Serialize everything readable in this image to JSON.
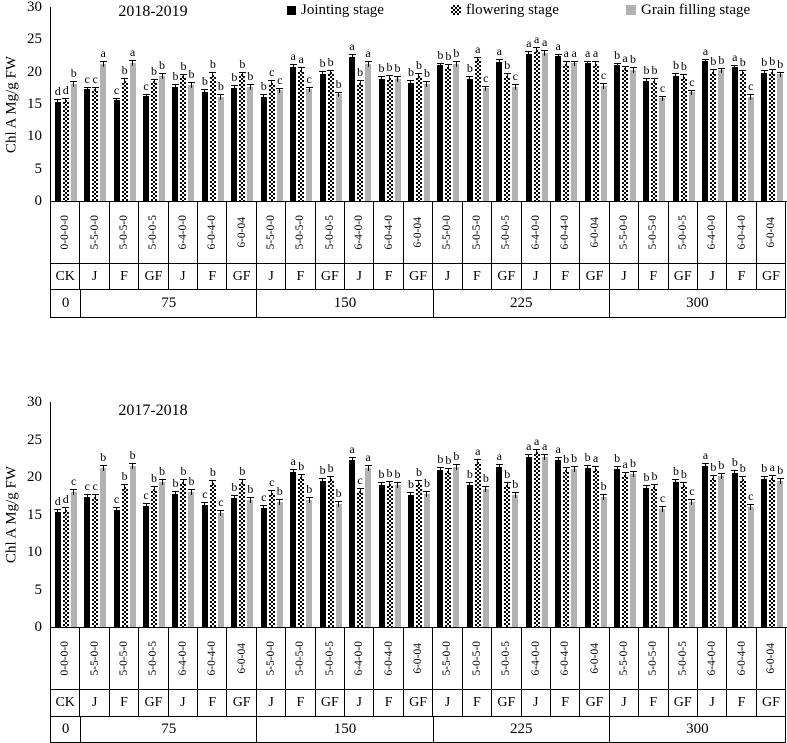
{
  "legend": {
    "items": [
      {
        "label": "Jointing stage",
        "swatch": "black"
      },
      {
        "label": "flowering stage",
        "swatch": "checker"
      },
      {
        "label": "Grain filling stage",
        "swatch": "gray"
      }
    ]
  },
  "colors": {
    "jointing": "#000000",
    "flowering_pattern": "black-white-checker",
    "grain_filling": "#b2b2b2",
    "axis": "#000000"
  },
  "chart_data": {
    "type": "bar",
    "ylabel": "Chl A Mg/g FW",
    "ylim": [
      0,
      30
    ],
    "yticks": [
      0,
      5,
      10,
      15,
      20,
      25,
      30
    ],
    "grid": false,
    "legend_position": "top",
    "error_bar_half": 0.4,
    "series_names": [
      "Jointing stage",
      "flowering stage",
      "Grain filling stage"
    ],
    "group_codes": [
      "0-0-0-0",
      "5-5-0-0",
      "5-0-5-0",
      "5-0-0-5",
      "6-4-0-0",
      "6-0-4-0",
      "6-0-04",
      "5-5-0-0",
      "5-0-5-0",
      "5-0-0-5",
      "6-4-0-0",
      "6-0-4-0",
      "6-0-04",
      "5-5-0-0",
      "5-0-5-0",
      "5-0-0-5",
      "6-4-0-0",
      "6-0-4-0",
      "6-0-04",
      "5-5-0-0",
      "5-0-5-0",
      "5-0-0-5",
      "6-4-0-0",
      "6-0-4-0",
      "6-0-04"
    ],
    "group_stages": [
      "CK",
      "J",
      "F",
      "GF",
      "J",
      "F",
      "GF",
      "J",
      "F",
      "GF",
      "J",
      "F",
      "GF",
      "J",
      "F",
      "GF",
      "J",
      "F",
      "GF",
      "J",
      "F",
      "GF",
      "J",
      "F",
      "GF"
    ],
    "n_blocks": [
      {
        "label": "0",
        "span": 1
      },
      {
        "label": "75",
        "span": 6
      },
      {
        "label": "150",
        "span": 6
      },
      {
        "label": "225",
        "span": 6
      },
      {
        "label": "300",
        "span": 6
      }
    ],
    "charts": [
      {
        "title": "2018-2019",
        "values": [
          [
            15.3,
            15.6,
            18.1
          ],
          [
            17.3,
            17.3,
            21.2
          ],
          [
            15.6,
            18.6,
            21.4
          ],
          [
            16.2,
            18.5,
            19.4
          ],
          [
            17.7,
            19.3,
            18.0
          ],
          [
            16.9,
            19.5,
            16.1
          ],
          [
            17.5,
            19.6,
            17.7
          ],
          [
            16.1,
            18.3,
            17.1
          ],
          [
            20.8,
            20.3,
            17.3
          ],
          [
            19.7,
            19.9,
            16.5
          ],
          [
            22.3,
            18.3,
            21.2
          ],
          [
            18.9,
            19.1,
            18.9
          ],
          [
            18.3,
            19.4,
            18.1
          ],
          [
            21.0,
            20.8,
            21.2
          ],
          [
            18.9,
            21.9,
            17.4
          ],
          [
            21.5,
            19.4,
            17.7
          ],
          [
            22.8,
            23.4,
            22.9
          ],
          [
            22.4,
            21.2,
            21.3
          ],
          [
            21.3,
            21.2,
            17.8
          ],
          [
            21.0,
            20.5,
            20.3
          ],
          [
            18.6,
            18.6,
            15.9
          ],
          [
            19.4,
            19.2,
            16.8
          ],
          [
            21.6,
            20.0,
            20.2
          ],
          [
            20.7,
            19.9,
            16.1
          ],
          [
            19.8,
            20.0,
            19.6
          ]
        ],
        "letters": [
          [
            "d",
            "d",
            "b"
          ],
          [
            "c",
            "c",
            "a"
          ],
          [
            "c",
            "b",
            "a"
          ],
          [
            "c",
            "b",
            "b"
          ],
          [
            "b",
            "b",
            "b"
          ],
          [
            "b",
            "b",
            "b"
          ],
          [
            "b",
            "b",
            "b"
          ],
          [
            "b",
            "c",
            "c"
          ],
          [
            "a",
            "a",
            "c"
          ],
          [
            "b",
            "b",
            "b"
          ],
          [
            "a",
            "b",
            "a"
          ],
          [
            "b",
            "b",
            "b"
          ],
          [
            "b",
            "b",
            "b"
          ],
          [
            "b",
            "b",
            "b"
          ],
          [
            "b",
            "a",
            "c"
          ],
          [
            "a",
            "b",
            "c"
          ],
          [
            "a",
            "a",
            "a"
          ],
          [
            "a",
            "a",
            "a"
          ],
          [
            "a",
            "a",
            "c"
          ],
          [
            "b",
            "a",
            "b"
          ],
          [
            "b",
            "b",
            "c"
          ],
          [
            "b",
            "b",
            "c"
          ],
          [
            "a",
            "b",
            "b"
          ],
          [
            "a",
            "b",
            "c"
          ],
          [
            "b",
            "b",
            "b"
          ]
        ]
      },
      {
        "title": "2017-2018",
        "values": [
          [
            15.3,
            15.6,
            18.0
          ],
          [
            17.3,
            17.3,
            21.2
          ],
          [
            15.6,
            18.7,
            21.5
          ],
          [
            16.2,
            18.4,
            19.3
          ],
          [
            17.7,
            19.3,
            18.0
          ],
          [
            16.3,
            19.2,
            15.2
          ],
          [
            17.2,
            19.3,
            17.0
          ],
          [
            15.9,
            17.9,
            16.7
          ],
          [
            20.7,
            20.0,
            17.0
          ],
          [
            19.5,
            19.8,
            16.4
          ],
          [
            22.3,
            18.2,
            21.2
          ],
          [
            18.9,
            19.1,
            18.9
          ],
          [
            17.6,
            19.2,
            17.7
          ],
          [
            20.9,
            20.8,
            21.3
          ],
          [
            18.9,
            22.0,
            18.4
          ],
          [
            21.4,
            18.9,
            17.6
          ],
          [
            22.7,
            23.3,
            22.7
          ],
          [
            22.3,
            21.0,
            21.1
          ],
          [
            21.2,
            21.1,
            17.3
          ],
          [
            21.1,
            20.3,
            20.4
          ],
          [
            18.6,
            18.7,
            15.8
          ],
          [
            19.3,
            18.9,
            16.7
          ],
          [
            21.5,
            19.9,
            20.1
          ],
          [
            20.6,
            19.7,
            16.0
          ],
          [
            19.7,
            19.9,
            19.5
          ]
        ],
        "letters": [
          [
            "d",
            "d",
            "c"
          ],
          [
            "c",
            "c",
            "b"
          ],
          [
            "c",
            "b",
            "b"
          ],
          [
            "c",
            "b",
            "b"
          ],
          [
            "b",
            "b",
            "b"
          ],
          [
            "c",
            "b",
            "c"
          ],
          [
            "b",
            "b",
            "b"
          ],
          [
            "c",
            "c",
            "b"
          ],
          [
            "a",
            "b",
            "b"
          ],
          [
            "b",
            "b",
            "b"
          ],
          [
            "a",
            "c",
            "a"
          ],
          [
            "b",
            "b",
            "b"
          ],
          [
            "b",
            "b",
            "b"
          ],
          [
            "b",
            "b",
            "b"
          ],
          [
            "b",
            "a",
            "b"
          ],
          [
            "a",
            "b",
            "b"
          ],
          [
            "a",
            "a",
            "a"
          ],
          [
            "a",
            "b",
            "b"
          ],
          [
            "b",
            "a",
            "b"
          ],
          [
            "b",
            "a",
            "b"
          ],
          [
            "b",
            "b",
            "c"
          ],
          [
            "b",
            "b",
            "c"
          ],
          [
            "a",
            "b",
            "b"
          ],
          [
            "b",
            "b",
            "c"
          ],
          [
            "b",
            "a",
            "b"
          ]
        ]
      }
    ]
  }
}
